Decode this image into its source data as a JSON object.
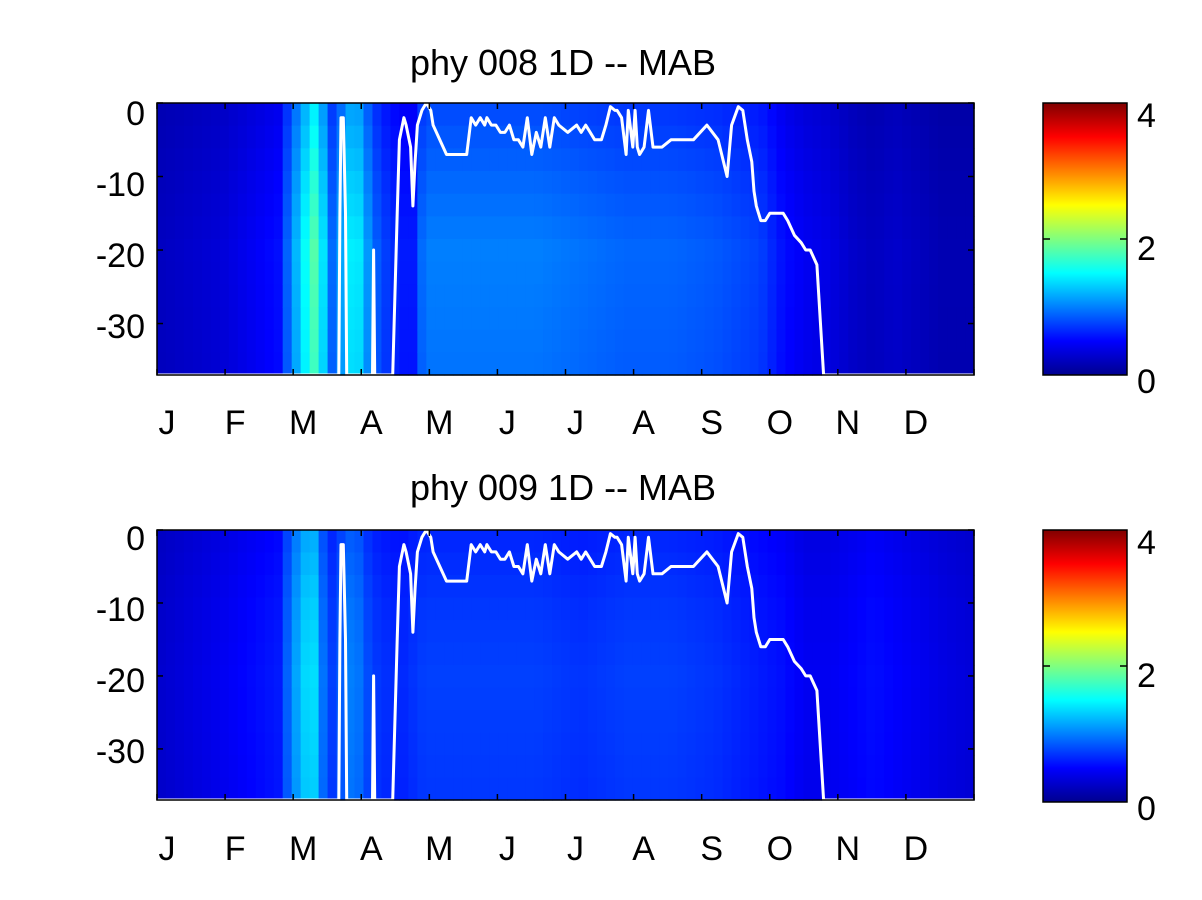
{
  "chart_data": [
    {
      "type": "heatmap",
      "title": "phy  008 1D   -- MAB",
      "xlabel": "",
      "ylabel": "",
      "x_tick_labels": [
        "J",
        "F",
        "M",
        "A",
        "M",
        "J",
        "J",
        "A",
        "S",
        "O",
        "N",
        "D"
      ],
      "x_range": [
        1,
        365
      ],
      "y_ticks": [
        0,
        -10,
        -20,
        -30
      ],
      "y_tick_labels": [
        "0",
        "-10",
        "-20",
        "-30"
      ],
      "ylim": [
        -37,
        0
      ],
      "colormap": "jet",
      "colorbar": {
        "range": [
          0,
          4
        ],
        "tick_labels": [
          "0",
          "2",
          "4"
        ]
      },
      "column_intensity": {
        "day": [
          1,
          30,
          55,
          64,
          68,
          72,
          75,
          80,
          85,
          90,
          95,
          100,
          105,
          110,
          115,
          120,
          130,
          150,
          170,
          190,
          210,
          230,
          250,
          260,
          270,
          280,
          290,
          300,
          310,
          320,
          330,
          340,
          350,
          365
        ],
        "value": [
          0.25,
          0.35,
          0.55,
          1.3,
          1.6,
          1.9,
          1.4,
          0.8,
          1.4,
          1.5,
          1.1,
          0.8,
          0.7,
          0.6,
          0.6,
          1.0,
          1.0,
          1.0,
          1.0,
          0.95,
          0.9,
          0.9,
          0.85,
          0.8,
          0.75,
          0.55,
          0.45,
          0.4,
          0.3,
          0.25,
          0.3,
          0.25,
          0.2,
          0.2
        ]
      },
      "depth_intensity": {
        "depth": [
          0,
          -10,
          -20,
          -37
        ],
        "factor": [
          0.78,
          0.9,
          1.0,
          0.95
        ]
      },
      "overlay_line": {
        "name": "",
        "color": "#ffffff",
        "x": [
          1,
          82,
          82.5,
          83,
          84,
          85,
          85.5,
          86,
          97,
          97.5,
          98,
          99,
          100,
          101,
          102,
          103,
          104,
          105,
          106,
          108,
          109,
          111,
          112,
          114,
          115,
          116,
          117,
          119,
          121,
          123,
          124,
          130,
          131,
          133,
          135,
          137,
          139,
          141,
          143,
          145,
          147,
          148,
          150,
          152,
          154,
          156,
          158,
          160,
          162,
          164,
          166,
          168,
          170,
          172,
          174,
          176,
          178,
          180,
          184,
          188,
          190,
          192,
          194,
          196,
          199,
          201,
          203,
          205,
          206,
          208,
          210,
          211,
          213,
          214,
          215,
          216,
          218,
          220,
          222,
          226,
          230,
          234,
          240,
          246,
          251,
          255,
          257,
          260,
          262,
          264,
          266,
          267,
          268,
          270,
          272,
          274,
          276,
          278,
          280,
          282,
          285,
          288,
          290,
          292,
          295,
          298,
          300,
          300.5,
          301,
          365
        ],
        "y": [
          -37,
          -37,
          -15,
          -2,
          -2,
          -15,
          -37,
          -37,
          -37,
          -20,
          -37,
          -37,
          -37,
          -37,
          -37,
          -37,
          -37,
          -37,
          -37,
          -15,
          -5,
          -2,
          -3,
          -6,
          -14,
          -8,
          -3,
          -1,
          0,
          -1,
          -3,
          -7,
          -7,
          -7,
          -7,
          -7,
          -7,
          -2,
          -3,
          -2,
          -3,
          -2,
          -3,
          -3,
          -4,
          -4,
          -3,
          -5,
          -5,
          -6,
          -2,
          -7,
          -4,
          -6,
          -2,
          -6,
          -2,
          -3,
          -4,
          -3,
          -4,
          -3,
          -4,
          -5,
          -5,
          -3,
          -0.5,
          -1,
          -1,
          -2,
          -7,
          -1,
          -6,
          -1,
          -6,
          -7,
          -6,
          -1,
          -6,
          -6,
          -5,
          -5,
          -5,
          -3,
          -5,
          -10,
          -3,
          -0.5,
          -1,
          -5,
          -8,
          -12,
          -14,
          -16,
          -16,
          -15,
          -15,
          -15,
          -15,
          -16,
          -18,
          -19,
          -20,
          -20,
          -22,
          -37,
          -37,
          -37,
          -37,
          -37
        ]
      }
    },
    {
      "type": "heatmap",
      "title": "phy  009 1D   -- MAB",
      "xlabel": "",
      "ylabel": "",
      "x_tick_labels": [
        "J",
        "F",
        "M",
        "A",
        "M",
        "J",
        "J",
        "A",
        "S",
        "O",
        "N",
        "D"
      ],
      "x_range": [
        1,
        365
      ],
      "y_ticks": [
        0,
        -10,
        -20,
        -30
      ],
      "y_tick_labels": [
        "0",
        "-10",
        "-20",
        "-30"
      ],
      "ylim": [
        -37,
        0
      ],
      "colormap": "jet",
      "colorbar": {
        "range": [
          0,
          4
        ],
        "tick_labels": [
          "0",
          "2",
          "4"
        ]
      },
      "column_intensity": {
        "day": [
          1,
          30,
          55,
          62,
          66,
          70,
          74,
          80,
          85,
          90,
          95,
          100,
          110,
          120,
          130,
          150,
          170,
          190,
          210,
          230,
          250,
          270,
          280,
          290,
          300,
          310,
          320,
          330,
          340,
          350,
          365
        ],
        "value": [
          0.3,
          0.45,
          0.6,
          1.1,
          1.3,
          1.5,
          1.0,
          0.7,
          1.0,
          1.0,
          0.8,
          0.7,
          0.65,
          0.75,
          0.75,
          0.75,
          0.75,
          0.7,
          0.75,
          0.75,
          0.7,
          0.6,
          0.55,
          0.45,
          0.45,
          0.5,
          0.55,
          0.5,
          0.45,
          0.4,
          0.35
        ]
      },
      "depth_intensity": {
        "depth": [
          0,
          -10,
          -20,
          -37
        ],
        "factor": [
          0.85,
          0.95,
          1.0,
          0.95
        ]
      },
      "overlay_line": {
        "name": "",
        "color": "#ffffff",
        "x": [
          1,
          82,
          82.5,
          83,
          84,
          85,
          85.5,
          86,
          97,
          97.5,
          98,
          99,
          100,
          101,
          102,
          103,
          104,
          105,
          106,
          108,
          109,
          111,
          112,
          114,
          115,
          116,
          117,
          119,
          121,
          123,
          124,
          130,
          131,
          133,
          135,
          137,
          139,
          141,
          143,
          145,
          147,
          148,
          150,
          152,
          154,
          156,
          158,
          160,
          162,
          164,
          166,
          168,
          170,
          172,
          174,
          176,
          178,
          180,
          184,
          188,
          190,
          192,
          194,
          196,
          199,
          201,
          203,
          205,
          206,
          208,
          210,
          211,
          213,
          214,
          215,
          216,
          218,
          220,
          222,
          226,
          230,
          234,
          240,
          246,
          251,
          255,
          257,
          260,
          262,
          264,
          266,
          267,
          268,
          270,
          272,
          274,
          276,
          278,
          280,
          282,
          285,
          288,
          290,
          292,
          295,
          298,
          300,
          300.5,
          301,
          365
        ],
        "y": [
          -37,
          -37,
          -15,
          -2,
          -2,
          -15,
          -37,
          -37,
          -37,
          -20,
          -37,
          -37,
          -37,
          -37,
          -37,
          -37,
          -37,
          -37,
          -37,
          -15,
          -5,
          -2,
          -3,
          -6,
          -14,
          -8,
          -3,
          -1,
          0,
          -1,
          -3,
          -7,
          -7,
          -7,
          -7,
          -7,
          -7,
          -2,
          -3,
          -2,
          -3,
          -2,
          -3,
          -3,
          -4,
          -4,
          -3,
          -5,
          -5,
          -6,
          -2,
          -7,
          -4,
          -6,
          -2,
          -6,
          -2,
          -3,
          -4,
          -3,
          -4,
          -3,
          -4,
          -5,
          -5,
          -3,
          -0.5,
          -1,
          -1,
          -2,
          -7,
          -1,
          -6,
          -1,
          -6,
          -7,
          -6,
          -1,
          -6,
          -6,
          -5,
          -5,
          -5,
          -3,
          -5,
          -10,
          -3,
          -0.5,
          -1,
          -5,
          -8,
          -12,
          -14,
          -16,
          -16,
          -15,
          -15,
          -15,
          -15,
          -16,
          -18,
          -19,
          -20,
          -20,
          -22,
          -37,
          -37,
          -37,
          -37,
          -37
        ]
      }
    }
  ]
}
